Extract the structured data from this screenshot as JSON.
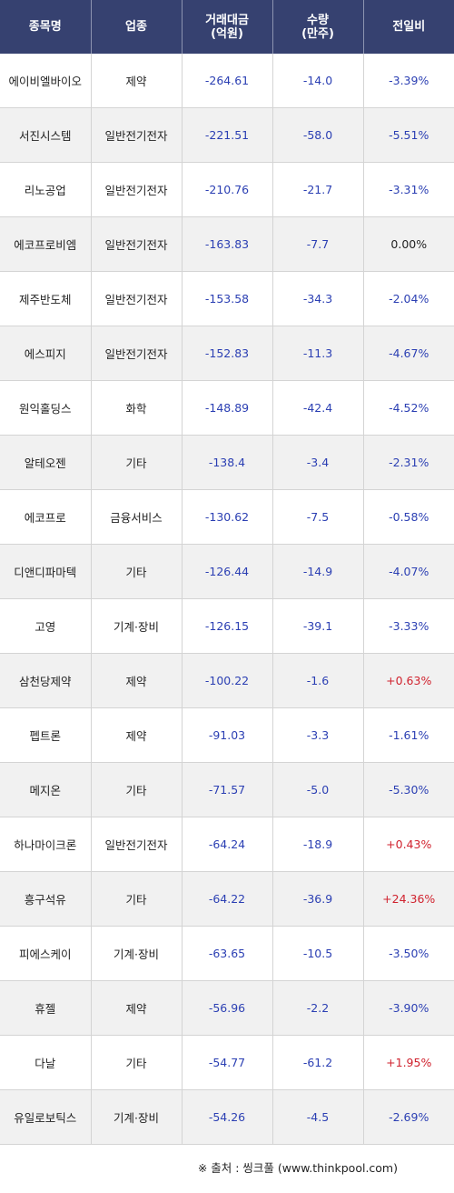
{
  "headers": {
    "name": "종목명",
    "sector": "업종",
    "value_line1": "거래대금",
    "value_line2": "(억원)",
    "volume_line1": "수량",
    "volume_line2": "(만주)",
    "change": "전일비"
  },
  "rows": [
    {
      "name": "에이비엘바이오",
      "sector": "제약",
      "value": "-264.61",
      "volume": "-14.0",
      "change": "-3.39%",
      "dir": "neg"
    },
    {
      "name": "서진시스템",
      "sector": "일반전기전자",
      "value": "-221.51",
      "volume": "-58.0",
      "change": "-5.51%",
      "dir": "neg"
    },
    {
      "name": "리노공업",
      "sector": "일반전기전자",
      "value": "-210.76",
      "volume": "-21.7",
      "change": "-3.31%",
      "dir": "neg"
    },
    {
      "name": "에코프로비엠",
      "sector": "일반전기전자",
      "value": "-163.83",
      "volume": "-7.7",
      "change": "0.00%",
      "dir": "zero"
    },
    {
      "name": "제주반도체",
      "sector": "일반전기전자",
      "value": "-153.58",
      "volume": "-34.3",
      "change": "-2.04%",
      "dir": "neg"
    },
    {
      "name": "에스피지",
      "sector": "일반전기전자",
      "value": "-152.83",
      "volume": "-11.3",
      "change": "-4.67%",
      "dir": "neg"
    },
    {
      "name": "원익홀딩스",
      "sector": "화학",
      "value": "-148.89",
      "volume": "-42.4",
      "change": "-4.52%",
      "dir": "neg"
    },
    {
      "name": "알테오젠",
      "sector": "기타",
      "value": "-138.4",
      "volume": "-3.4",
      "change": "-2.31%",
      "dir": "neg"
    },
    {
      "name": "에코프로",
      "sector": "금융서비스",
      "value": "-130.62",
      "volume": "-7.5",
      "change": "-0.58%",
      "dir": "neg"
    },
    {
      "name": "디앤디파마텍",
      "sector": "기타",
      "value": "-126.44",
      "volume": "-14.9",
      "change": "-4.07%",
      "dir": "neg"
    },
    {
      "name": "고영",
      "sector": "기계·장비",
      "value": "-126.15",
      "volume": "-39.1",
      "change": "-3.33%",
      "dir": "neg"
    },
    {
      "name": "삼천당제약",
      "sector": "제약",
      "value": "-100.22",
      "volume": "-1.6",
      "change": "+0.63%",
      "dir": "pos"
    },
    {
      "name": "펩트론",
      "sector": "제약",
      "value": "-91.03",
      "volume": "-3.3",
      "change": "-1.61%",
      "dir": "neg"
    },
    {
      "name": "메지온",
      "sector": "기타",
      "value": "-71.57",
      "volume": "-5.0",
      "change": "-5.30%",
      "dir": "neg"
    },
    {
      "name": "하나마이크론",
      "sector": "일반전기전자",
      "value": "-64.24",
      "volume": "-18.9",
      "change": "+0.43%",
      "dir": "pos"
    },
    {
      "name": "흥구석유",
      "sector": "기타",
      "value": "-64.22",
      "volume": "-36.9",
      "change": "+24.36%",
      "dir": "pos"
    },
    {
      "name": "피에스케이",
      "sector": "기계·장비",
      "value": "-63.65",
      "volume": "-10.5",
      "change": "-3.50%",
      "dir": "neg"
    },
    {
      "name": "휴젤",
      "sector": "제약",
      "value": "-56.96",
      "volume": "-2.2",
      "change": "-3.90%",
      "dir": "neg"
    },
    {
      "name": "다날",
      "sector": "기타",
      "value": "-54.77",
      "volume": "-61.2",
      "change": "+1.95%",
      "dir": "pos"
    },
    {
      "name": "유일로보틱스",
      "sector": "기계·장비",
      "value": "-54.26",
      "volume": "-4.5",
      "change": "-2.69%",
      "dir": "neg"
    }
  ],
  "footer": {
    "source": "※ 출처 : 씽크풀 (www.thinkpool.com)"
  },
  "colors": {
    "header_bg": "#364170",
    "negative": "#2b3fb3",
    "positive": "#d0222e"
  }
}
